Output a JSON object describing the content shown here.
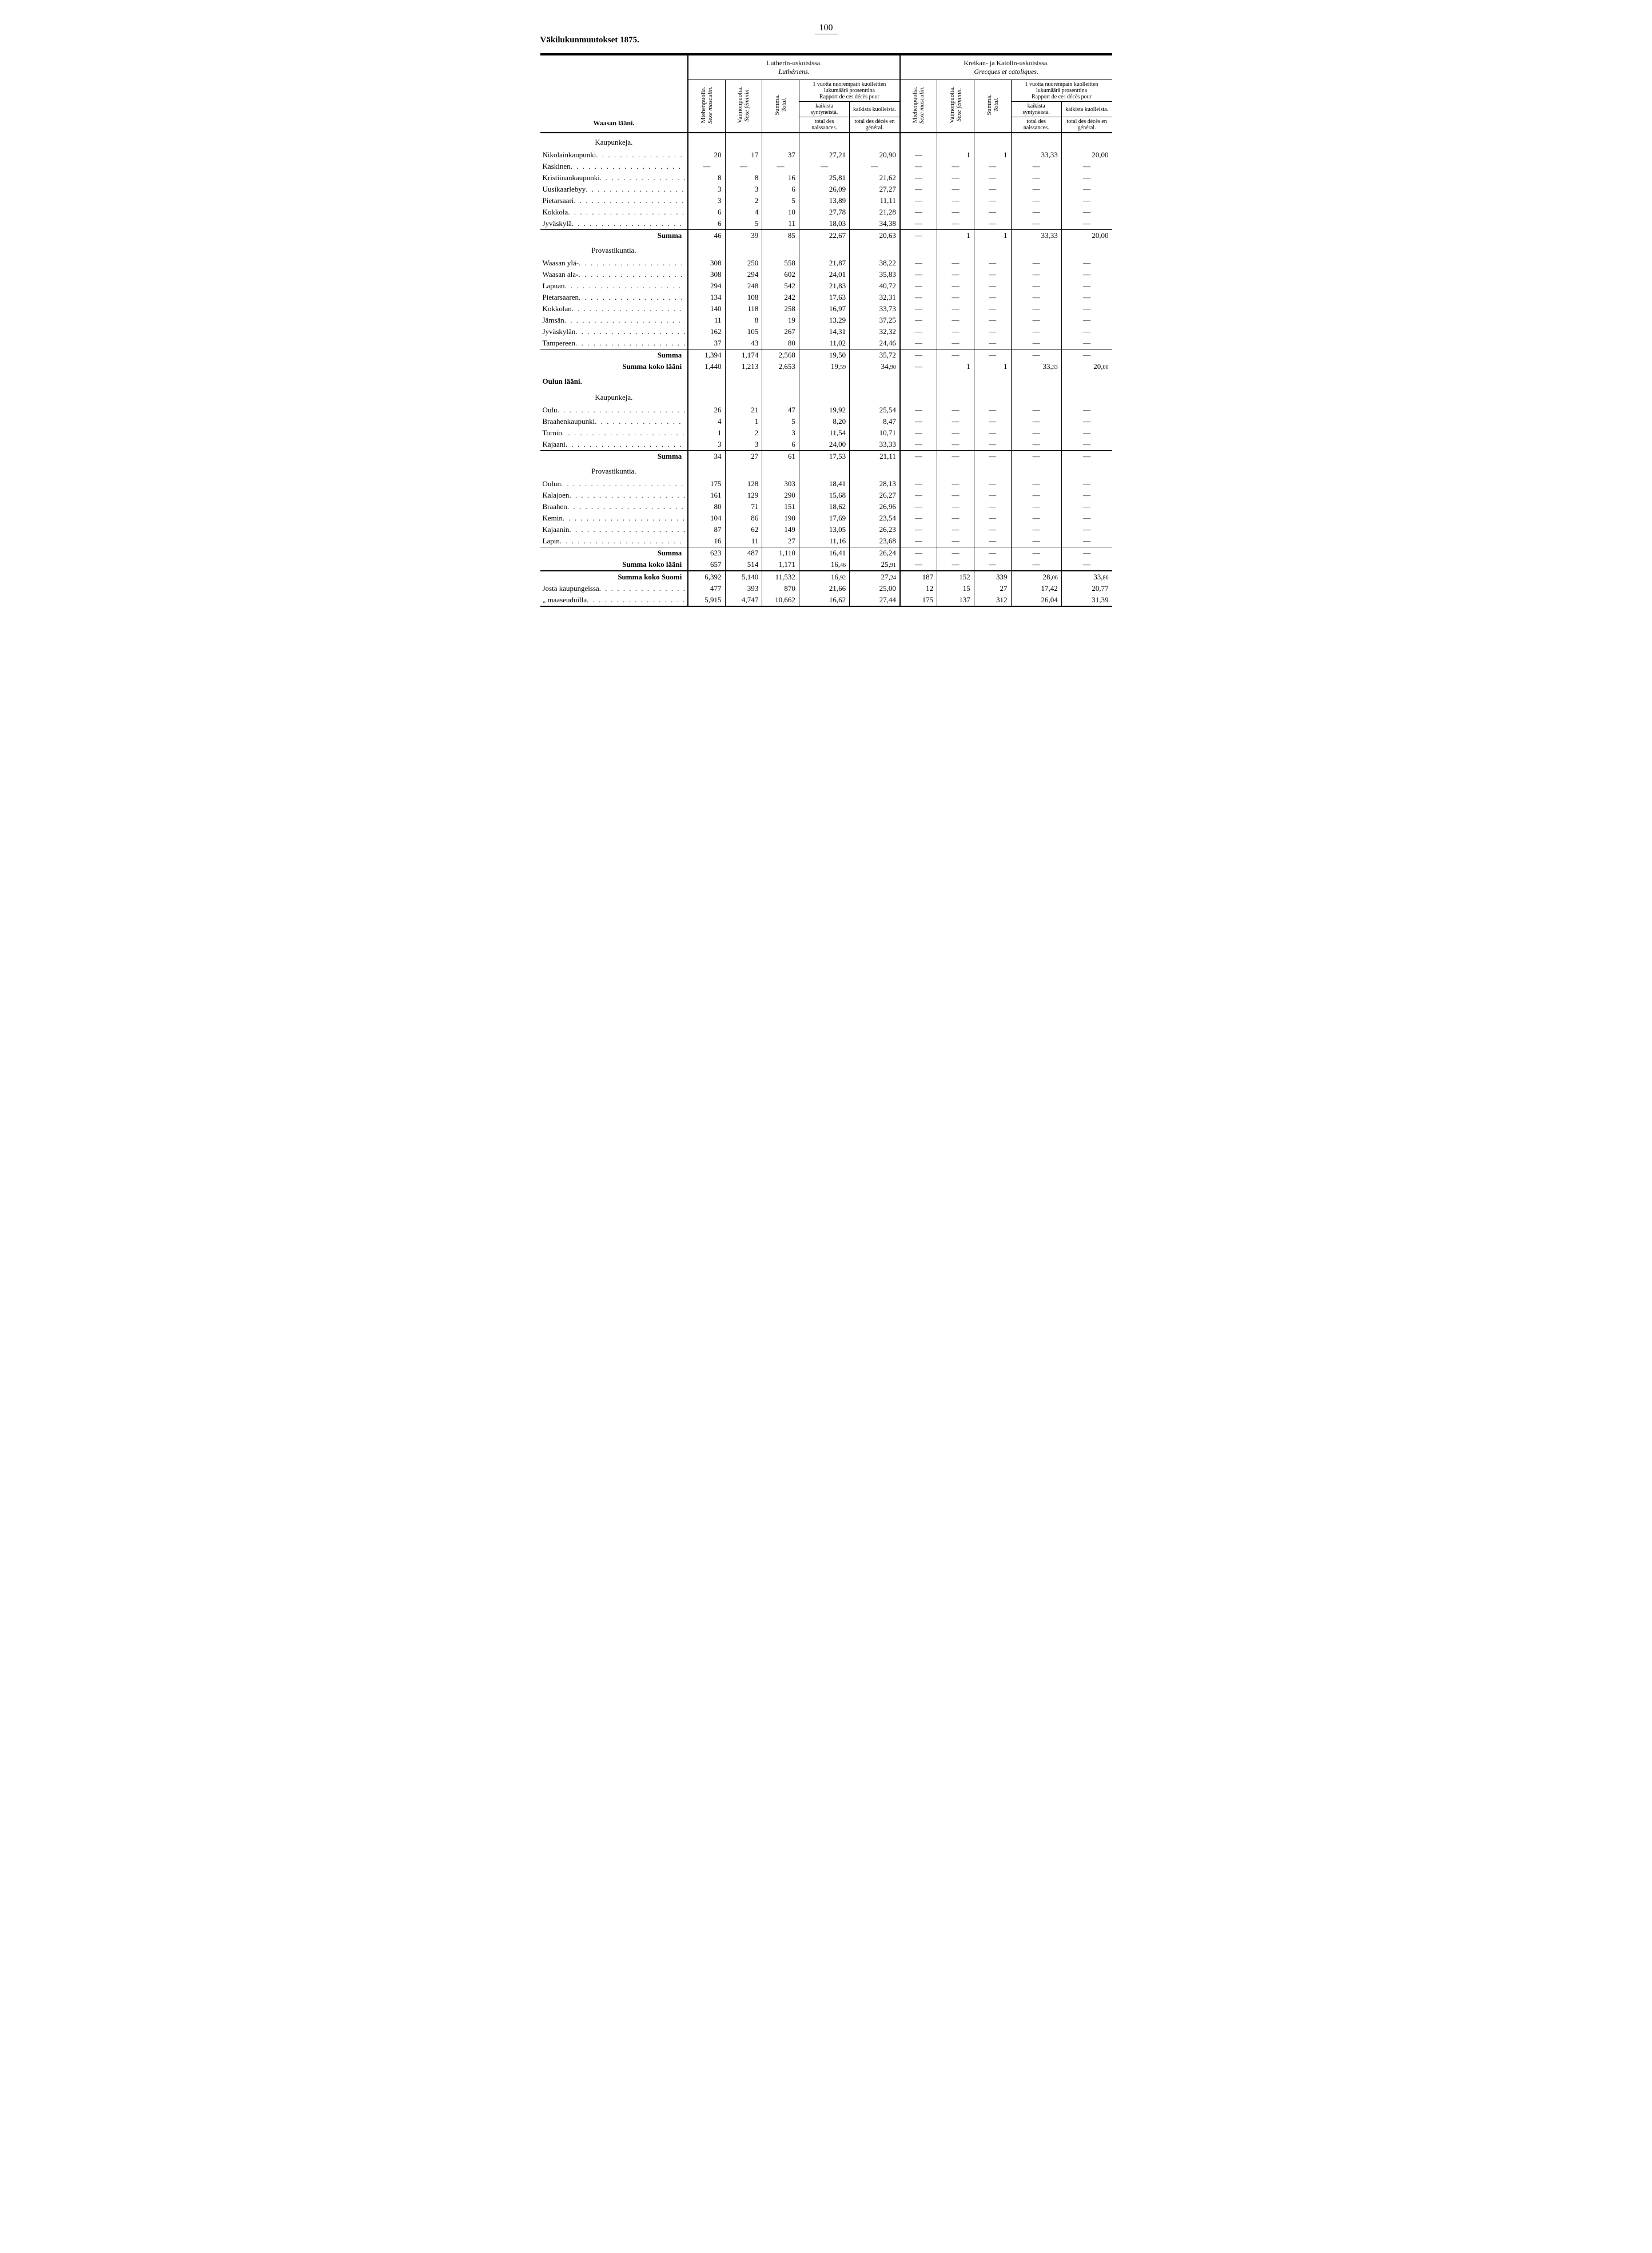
{
  "pageNumber": "100",
  "sideTitle": "Väkilukunmuutokset 1875.",
  "groupHeaders": {
    "lutheran": {
      "fi": "Lutherin-uskoisissa.",
      "fr": "Luthériens."
    },
    "greek": {
      "fi": "Kreikan- ja Katolin-uskoisissa.",
      "fr": "Grecques et catoliques."
    }
  },
  "subHeaders": {
    "male": {
      "fi": "Miehenpuolia.",
      "fr": "Sexe masculin."
    },
    "female": {
      "fi": "Vaimonpuolia.",
      "fr": "Sexe féminin."
    },
    "total": {
      "fi": "Summa.",
      "fr": "Total."
    },
    "infant": {
      "fi": "1 vuotta nuorempain kuolleitten lukumäärä prosenttina",
      "fr": "Rapport de ces décès pour"
    },
    "birthsFi": "kaikista syntyneistä.",
    "birthsFr": "total des naissances.",
    "deathsFi": "kaikista kuolleista.",
    "deathsFr": "total des décès en général."
  },
  "colLabel": "Waasan lääni.",
  "sections": [
    {
      "header": "Kaupunkeja.",
      "rows": [
        {
          "label": "Nikolainkaupunki",
          "v": [
            "20",
            "17",
            "37",
            "27,21",
            "20,90",
            "—",
            "1",
            "1",
            "33,33",
            "20,00"
          ]
        },
        {
          "label": "Kaskinen",
          "v": [
            "—",
            "—",
            "—",
            "—",
            "—",
            "—",
            "—",
            "—",
            "—",
            "—"
          ]
        },
        {
          "label": "Kristiinankaupunki",
          "v": [
            "8",
            "8",
            "16",
            "25,81",
            "21,62",
            "—",
            "—",
            "—",
            "—",
            "—"
          ]
        },
        {
          "label": "Uusikaarlebyy",
          "v": [
            "3",
            "3",
            "6",
            "26,09",
            "27,27",
            "—",
            "—",
            "—",
            "—",
            "—"
          ]
        },
        {
          "label": "Pietarsaari",
          "v": [
            "3",
            "2",
            "5",
            "13,89",
            "11,11",
            "—",
            "—",
            "—",
            "—",
            "—"
          ]
        },
        {
          "label": "Kokkola",
          "v": [
            "6",
            "4",
            "10",
            "27,78",
            "21,28",
            "—",
            "—",
            "—",
            "—",
            "—"
          ]
        },
        {
          "label": "Jyväskylä",
          "v": [
            "6",
            "5",
            "11",
            "18,03",
            "34,38",
            "—",
            "—",
            "—",
            "—",
            "—"
          ]
        }
      ],
      "sum": {
        "label": "Summa",
        "v": [
          "46",
          "39",
          "85",
          "22,67",
          "20,63",
          "—",
          "1",
          "1",
          "33,33",
          "20,00"
        ]
      }
    },
    {
      "header": "Provastikuntia.",
      "rows": [
        {
          "label": "Waasan ylä-",
          "v": [
            "308",
            "250",
            "558",
            "21,87",
            "38,22",
            "—",
            "—",
            "—",
            "—",
            "—"
          ]
        },
        {
          "label": "Waasan ala-",
          "v": [
            "308",
            "294",
            "602",
            "24,01",
            "35,83",
            "—",
            "—",
            "—",
            "—",
            "—"
          ]
        },
        {
          "label": "Lapuan",
          "v": [
            "294",
            "248",
            "542",
            "21,83",
            "40,72",
            "—",
            "—",
            "—",
            "—",
            "—"
          ]
        },
        {
          "label": "Pietarsaaren",
          "v": [
            "134",
            "108",
            "242",
            "17,63",
            "32,31",
            "—",
            "—",
            "—",
            "—",
            "—"
          ]
        },
        {
          "label": "Kokkolan",
          "v": [
            "140",
            "118",
            "258",
            "16,97",
            "33,73",
            "—",
            "—",
            "—",
            "—",
            "—"
          ]
        },
        {
          "label": "Jämsän",
          "v": [
            "11",
            "8",
            "19",
            "13,29",
            "37,25",
            "—",
            "—",
            "—",
            "—",
            "—"
          ]
        },
        {
          "label": "Jyväskylän",
          "v": [
            "162",
            "105",
            "267",
            "14,31",
            "32,32",
            "—",
            "—",
            "—",
            "—",
            "—"
          ]
        },
        {
          "label": "Tampereen",
          "v": [
            "37",
            "43",
            "80",
            "11,02",
            "24,46",
            "—",
            "—",
            "—",
            "—",
            "—"
          ]
        }
      ],
      "sum": {
        "label": "Summa",
        "v": [
          "1,394",
          "1,174",
          "2,568",
          "19,50",
          "35,72",
          "—",
          "—",
          "—",
          "—",
          "—"
        ]
      },
      "grand": {
        "label": "Summa koko lääni",
        "v": [
          "1,440",
          "1,213",
          "2,653",
          "19,59",
          "34,90",
          "—",
          "1",
          "1",
          "33,33",
          "20,00"
        ],
        "fracIdx": [
          3,
          4,
          8,
          9
        ]
      }
    },
    {
      "header": "Oulun lääni.",
      "big": true
    },
    {
      "header": "Kaupunkeja.",
      "rows": [
        {
          "label": "Oulu",
          "v": [
            "26",
            "21",
            "47",
            "19,92",
            "25,54",
            "—",
            "—",
            "—",
            "—",
            "—"
          ]
        },
        {
          "label": "Braahenkaupunki",
          "v": [
            "4",
            "1",
            "5",
            "8,20",
            "8,47",
            "—",
            "—",
            "—",
            "—",
            "—"
          ]
        },
        {
          "label": "Tornio",
          "v": [
            "1",
            "2",
            "3",
            "11,54",
            "10,71",
            "—",
            "—",
            "—",
            "—",
            "—"
          ]
        },
        {
          "label": "Kajaani",
          "v": [
            "3",
            "3",
            "6",
            "24,00",
            "33,33",
            "—",
            "—",
            "—",
            "—",
            "—"
          ]
        }
      ],
      "sum": {
        "label": "Summa",
        "v": [
          "34",
          "27",
          "61",
          "17,53",
          "21,11",
          "—",
          "—",
          "—",
          "—",
          "—"
        ]
      }
    },
    {
      "header": "Provastikuntia.",
      "rows": [
        {
          "label": "Oulun",
          "v": [
            "175",
            "128",
            "303",
            "18,41",
            "28,13",
            "—",
            "—",
            "—",
            "—",
            "—"
          ]
        },
        {
          "label": "Kalajoen",
          "v": [
            "161",
            "129",
            "290",
            "15,68",
            "26,27",
            "—",
            "—",
            "—",
            "—",
            "—"
          ]
        },
        {
          "label": "Braahen",
          "v": [
            "80",
            "71",
            "151",
            "18,62",
            "26,96",
            "—",
            "—",
            "—",
            "—",
            "—"
          ]
        },
        {
          "label": "Kemin",
          "v": [
            "104",
            "86",
            "190",
            "17,69",
            "23,54",
            "—",
            "—",
            "—",
            "—",
            "—"
          ]
        },
        {
          "label": "Kajaanin",
          "v": [
            "87",
            "62",
            "149",
            "13,05",
            "26,23",
            "—",
            "—",
            "—",
            "—",
            "—"
          ]
        },
        {
          "label": "Lapin",
          "v": [
            "16",
            "11",
            "27",
            "11,16",
            "23,68",
            "—",
            "—",
            "—",
            "—",
            "—"
          ]
        }
      ],
      "sum": {
        "label": "Summa",
        "v": [
          "623",
          "487",
          "1,110",
          "16,41",
          "26,24",
          "—",
          "—",
          "—",
          "—",
          "—"
        ]
      },
      "grand": {
        "label": "Summa koko lääni",
        "v": [
          "657",
          "514",
          "1,171",
          "16,46",
          "25,91",
          "—",
          "—",
          "—",
          "—",
          "—"
        ],
        "fracIdx": [
          3,
          4
        ]
      }
    }
  ],
  "finals": [
    {
      "label": "Summa koko Suomi",
      "bold": true,
      "v": [
        "6,392",
        "5,140",
        "11,532",
        "16,92",
        "27,24",
        "187",
        "152",
        "339",
        "28,06",
        "33,86"
      ],
      "fracIdx": [
        3,
        4,
        8,
        9
      ]
    },
    {
      "label": "Josta kaupungeissa",
      "v": [
        "477",
        "393",
        "870",
        "21,66",
        "25,00",
        "12",
        "15",
        "27",
        "17,42",
        "20,77"
      ]
    },
    {
      "label": "„      maaseuduilla",
      "v": [
        "5,915",
        "4,747",
        "10,662",
        "16,62",
        "27,44",
        "175",
        "137",
        "312",
        "26,04",
        "31,39"
      ]
    }
  ],
  "style": {
    "colWidths": [
      "220",
      "55",
      "55",
      "55",
      "75",
      "75",
      "55",
      "55",
      "55",
      "75",
      "75"
    ],
    "dashGlyph": "—"
  }
}
